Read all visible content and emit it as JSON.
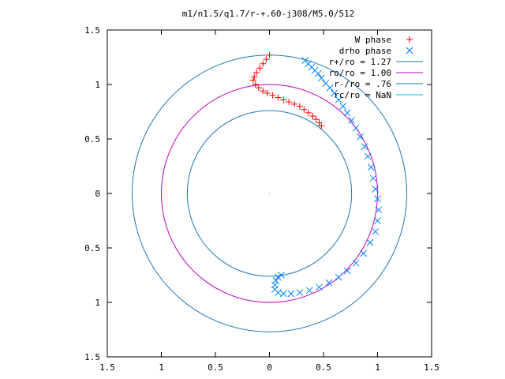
{
  "chart_data": {
    "type": "scatter",
    "title": "m1/n1.5/q1.7/r-+.60-j308/M5.0/512",
    "xlim": [
      -1.5,
      1.5
    ],
    "ylim": [
      -1.5,
      1.5
    ],
    "x_ticks": [
      -1.5,
      -1,
      -0.5,
      0,
      0.5,
      1,
      1.5
    ],
    "x_tick_labels": [
      "1.5",
      "1",
      "0.5",
      "0",
      "0.5",
      "1",
      "1.5"
    ],
    "y_ticks": [
      1.5,
      1,
      0.5,
      0,
      -0.5,
      -1,
      -1.5
    ],
    "y_tick_labels": [
      "1.5",
      "1",
      "0.5",
      "0",
      "0.5",
      "1",
      "1.5"
    ],
    "grid": false,
    "legend_position": "top-right",
    "legend": [
      {
        "label": "W phase",
        "marker": "+",
        "color": "#ff0000"
      },
      {
        "label": "drho phase",
        "marker": "x",
        "color": "#0080ff"
      },
      {
        "label": "r+/ro = 1.27",
        "marker": "line",
        "color": "#1f78b4"
      },
      {
        "label": "ro/ro = 1.00",
        "marker": "line",
        "color": "#c000c0"
      },
      {
        "label": "r-/ro = .76",
        "marker": "line",
        "color": "#1f78b4"
      },
      {
        "label": "rc/ro = NaN",
        "marker": "line",
        "color": "#00c0e0"
      }
    ],
    "circles": [
      {
        "name": "r+/ro = 1.27",
        "r": 1.27,
        "color": "#1f78b4"
      },
      {
        "name": "ro/ro = 1.00",
        "r": 1.0,
        "color": "#c000c0"
      },
      {
        "name": "r-/ro = .76",
        "r": 0.76,
        "color": "#1f78b4"
      }
    ],
    "series": [
      {
        "name": "W phase",
        "marker": "+",
        "color": "#ff0000",
        "points": [
          [
            0.0,
            1.27
          ],
          [
            -0.03,
            1.23
          ],
          [
            -0.06,
            1.19
          ],
          [
            -0.09,
            1.15
          ],
          [
            -0.12,
            1.11
          ],
          [
            -0.14,
            1.07
          ],
          [
            -0.15,
            1.04
          ],
          [
            -0.13,
            1.0
          ],
          [
            -0.1,
            0.97
          ],
          [
            -0.06,
            0.94
          ],
          [
            -0.02,
            0.92
          ],
          [
            0.03,
            0.9
          ],
          [
            0.08,
            0.88
          ],
          [
            0.13,
            0.86
          ],
          [
            0.18,
            0.84
          ],
          [
            0.23,
            0.82
          ],
          [
            0.28,
            0.8
          ],
          [
            0.32,
            0.77
          ],
          [
            0.36,
            0.74
          ],
          [
            0.4,
            0.71
          ],
          [
            0.43,
            0.68
          ],
          [
            0.46,
            0.65
          ],
          [
            0.48,
            0.62
          ]
        ]
      },
      {
        "name": "drho phase",
        "marker": "x",
        "color": "#0080ff",
        "points": [
          [
            0.33,
            1.22
          ],
          [
            0.36,
            1.19
          ],
          [
            0.39,
            1.16
          ],
          [
            0.42,
            1.13
          ],
          [
            0.45,
            1.1
          ],
          [
            0.48,
            1.06
          ],
          [
            0.52,
            1.01
          ],
          [
            0.56,
            0.97
          ],
          [
            0.6,
            0.92
          ],
          [
            0.64,
            0.86
          ],
          [
            0.68,
            0.8
          ],
          [
            0.72,
            0.74
          ],
          [
            0.76,
            0.67
          ],
          [
            0.8,
            0.6
          ],
          [
            0.84,
            0.52
          ],
          [
            0.88,
            0.43
          ],
          [
            0.91,
            0.34
          ],
          [
            0.94,
            0.24
          ],
          [
            0.96,
            0.14
          ],
          [
            0.98,
            0.04
          ],
          [
            1.0,
            -0.05
          ],
          [
            1.01,
            -0.15
          ],
          [
            1.0,
            -0.25
          ],
          [
            0.98,
            -0.35
          ],
          [
            0.93,
            -0.45
          ],
          [
            0.87,
            -0.55
          ],
          [
            0.8,
            -0.64
          ],
          [
            0.72,
            -0.71
          ],
          [
            0.64,
            -0.77
          ],
          [
            0.55,
            -0.82
          ],
          [
            0.46,
            -0.86
          ],
          [
            0.37,
            -0.89
          ],
          [
            0.28,
            -0.91
          ],
          [
            0.2,
            -0.92
          ],
          [
            0.13,
            -0.92
          ],
          [
            0.08,
            -0.91
          ],
          [
            0.05,
            -0.88
          ],
          [
            0.05,
            -0.84
          ],
          [
            0.06,
            -0.8
          ],
          [
            0.08,
            -0.77
          ],
          [
            0.11,
            -0.75
          ]
        ]
      }
    ]
  }
}
